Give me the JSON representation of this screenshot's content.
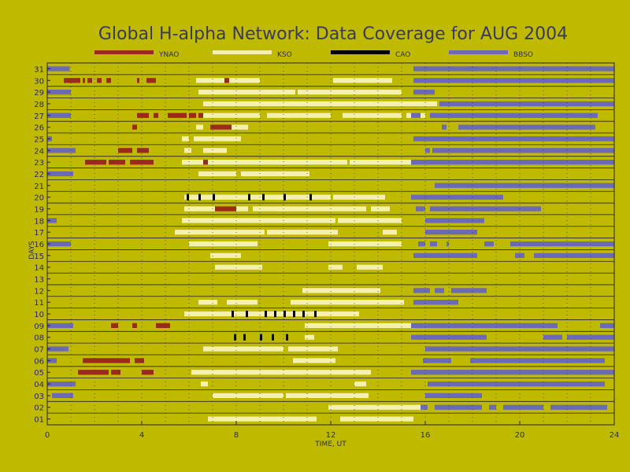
{
  "chart_data": {
    "type": "timeline",
    "title": "Global H-alpha Network: Data Coverage for AUG 2004",
    "xlabel": "TIME, UT",
    "ylabel": "DAYS",
    "xlim": [
      0,
      24
    ],
    "ylim": [
      0.5,
      31.5
    ],
    "xticks": [
      0,
      4,
      8,
      12,
      16,
      20,
      24
    ],
    "yticks": [
      1,
      2,
      3,
      4,
      5,
      6,
      7,
      8,
      9,
      10,
      11,
      12,
      13,
      14,
      15,
      16,
      17,
      18,
      19,
      20,
      21,
      22,
      23,
      24,
      25,
      26,
      27,
      28,
      29,
      30,
      31
    ],
    "ytick_labels": [
      "01",
      "02",
      "03",
      "04",
      "05",
      "06",
      "07",
      "08",
      "09",
      "10",
      "11",
      "12",
      "13",
      "14",
      "15",
      "16",
      "17",
      "18",
      "19",
      "20",
      "21",
      "22",
      "23",
      "24",
      "25",
      "26",
      "27",
      "28",
      "29",
      "30",
      "31"
    ],
    "grid": true,
    "legend_position": "top",
    "colors": {
      "YNAO": "#9c2a1c",
      "KSO": "#f4f0b0",
      "CAO": "#000000",
      "BBSO": "#6a6ab8"
    },
    "series": [
      {
        "name": "YNAO",
        "segments": [
          [
            30,
            0.7,
            1.4
          ],
          [
            30,
            1.5,
            1.6
          ],
          [
            30,
            1.7,
            1.9
          ],
          [
            30,
            2.1,
            2.3
          ],
          [
            30,
            2.5,
            2.7
          ],
          [
            30,
            3.8,
            3.9
          ],
          [
            30,
            4.2,
            4.6
          ],
          [
            30,
            7.5,
            7.7
          ],
          [
            27,
            3.8,
            4.3
          ],
          [
            27,
            4.5,
            4.7
          ],
          [
            27,
            5.1,
            5.9
          ],
          [
            27,
            6.0,
            6.3
          ],
          [
            27,
            6.4,
            6.6
          ],
          [
            26,
            3.6,
            3.8
          ],
          [
            26,
            6.9,
            7.8
          ],
          [
            24,
            3.0,
            3.6
          ],
          [
            24,
            3.8,
            4.3
          ],
          [
            23,
            1.6,
            2.5
          ],
          [
            23,
            2.6,
            3.3
          ],
          [
            23,
            3.5,
            4.5
          ],
          [
            23,
            6.6,
            6.8
          ],
          [
            19,
            7.1,
            8.0
          ],
          [
            9,
            2.7,
            3.0
          ],
          [
            9,
            3.6,
            3.8
          ],
          [
            9,
            4.6,
            5.2
          ],
          [
            6,
            1.5,
            3.5
          ],
          [
            6,
            3.7,
            4.1
          ],
          [
            5,
            1.3,
            2.6
          ],
          [
            5,
            2.7,
            3.1
          ],
          [
            5,
            4.0,
            4.5
          ]
        ]
      },
      {
        "name": "KSO",
        "segments": [
          [
            30,
            6.3,
            9.0
          ],
          [
            30,
            12.1,
            14.6
          ],
          [
            29,
            6.4,
            10.5
          ],
          [
            29,
            10.6,
            15.0
          ],
          [
            28,
            6.6,
            16.5
          ],
          [
            27,
            6.4,
            9.0
          ],
          [
            27,
            9.3,
            12.0
          ],
          [
            27,
            12.5,
            15.0
          ],
          [
            27,
            15.2,
            16.0
          ],
          [
            26,
            6.3,
            6.6
          ],
          [
            26,
            7.0,
            8.5
          ],
          [
            25,
            5.7,
            6.0
          ],
          [
            25,
            6.2,
            8.2
          ],
          [
            24,
            5.8,
            6.1
          ],
          [
            24,
            6.6,
            7.6
          ],
          [
            23,
            5.7,
            12.7
          ],
          [
            23,
            12.8,
            15.4
          ],
          [
            22,
            6.4,
            8.0
          ],
          [
            22,
            8.2,
            11.1
          ],
          [
            20,
            5.8,
            8.5
          ],
          [
            20,
            9.0,
            10.2
          ],
          [
            20,
            5.9,
            12.0
          ],
          [
            20,
            12.1,
            14.3
          ],
          [
            19,
            5.8,
            8.5
          ],
          [
            19,
            8.7,
            13.5
          ],
          [
            19,
            13.7,
            14.5
          ],
          [
            18,
            5.7,
            12.2
          ],
          [
            18,
            12.3,
            15.0
          ],
          [
            17,
            5.4,
            9.2
          ],
          [
            17,
            9.3,
            12.3
          ],
          [
            17,
            14.2,
            14.8
          ],
          [
            16,
            6.0,
            8.9
          ],
          [
            16,
            11.9,
            15.0
          ],
          [
            15,
            6.9,
            8.2
          ],
          [
            14,
            7.1,
            9.1
          ],
          [
            14,
            11.9,
            12.5
          ],
          [
            14,
            13.1,
            14.2
          ],
          [
            12,
            10.8,
            14.1
          ],
          [
            11,
            6.4,
            7.2
          ],
          [
            11,
            7.6,
            8.9
          ],
          [
            11,
            10.3,
            15.1
          ],
          [
            10,
            5.8,
            13.2
          ],
          [
            9,
            10.9,
            15.5
          ],
          [
            8,
            10.9,
            11.3
          ],
          [
            7,
            6.6,
            10.0
          ],
          [
            7,
            10.2,
            12.3
          ],
          [
            6,
            10.4,
            12.2
          ],
          [
            5,
            6.1,
            13.7
          ],
          [
            4,
            6.5,
            6.8
          ],
          [
            4,
            13.0,
            13.5
          ],
          [
            3,
            7.0,
            10.0
          ],
          [
            3,
            10.1,
            13.6
          ],
          [
            2,
            11.9,
            15.8
          ],
          [
            1,
            6.8,
            11.4
          ],
          [
            1,
            12.4,
            15.5
          ]
        ]
      },
      {
        "name": "CAO",
        "segments": [
          [
            20,
            5.9,
            6.0
          ],
          [
            20,
            6.4,
            6.5
          ],
          [
            20,
            7.0,
            7.1
          ],
          [
            20,
            8.5,
            8.6
          ],
          [
            20,
            9.1,
            9.2
          ],
          [
            20,
            10.0,
            10.1
          ],
          [
            20,
            11.1,
            11.2
          ],
          [
            10,
            7.8,
            7.9
          ],
          [
            10,
            8.4,
            8.5
          ],
          [
            10,
            9.2,
            9.3
          ],
          [
            10,
            9.6,
            9.7
          ],
          [
            10,
            10.0,
            10.1
          ],
          [
            10,
            10.4,
            10.5
          ],
          [
            10,
            10.8,
            10.9
          ],
          [
            10,
            11.3,
            11.4
          ],
          [
            8,
            7.9,
            8.0
          ],
          [
            8,
            8.3,
            8.4
          ],
          [
            8,
            9.0,
            9.1
          ],
          [
            8,
            9.5,
            9.6
          ],
          [
            8,
            10.1,
            10.2
          ]
        ]
      },
      {
        "name": "BBSO",
        "segments": [
          [
            31,
            0,
            0.95
          ],
          [
            31,
            15.5,
            24
          ],
          [
            30,
            15.5,
            24
          ],
          [
            29,
            0,
            1.0
          ],
          [
            29,
            15.5,
            16.4
          ],
          [
            28,
            16.6,
            24
          ],
          [
            27,
            15.4,
            15.8
          ],
          [
            27,
            16.2,
            23.3
          ],
          [
            27,
            0,
            1.0
          ],
          [
            26,
            16.7,
            16.9
          ],
          [
            26,
            17.4,
            23.2
          ],
          [
            25,
            0,
            0.2
          ],
          [
            25,
            15.5,
            24
          ],
          [
            24,
            0,
            1.2
          ],
          [
            24,
            16.0,
            16.2
          ],
          [
            24,
            16.3,
            24
          ],
          [
            23,
            15.4,
            24
          ],
          [
            22,
            0,
            1.1
          ],
          [
            21,
            16.4,
            24
          ],
          [
            20,
            15.4,
            19.3
          ],
          [
            19,
            15.6,
            16.0
          ],
          [
            19,
            16.2,
            20.9
          ],
          [
            18,
            0,
            0.4
          ],
          [
            18,
            16.0,
            18.5
          ],
          [
            17,
            16.0,
            18.2
          ],
          [
            16,
            0,
            1.0
          ],
          [
            16,
            15.7,
            16.0
          ],
          [
            16,
            16.2,
            16.5
          ],
          [
            16,
            16.9,
            17.0
          ],
          [
            16,
            18.5,
            18.9
          ],
          [
            16,
            19.6,
            24
          ],
          [
            15,
            15.5,
            18.2
          ],
          [
            15,
            19.8,
            20.2
          ],
          [
            15,
            20.6,
            24
          ],
          [
            12,
            15.5,
            16.2
          ],
          [
            12,
            16.4,
            16.8
          ],
          [
            12,
            17.1,
            18.6
          ],
          [
            11,
            15.5,
            17.4
          ],
          [
            9,
            0,
            1.1
          ],
          [
            9,
            15.4,
            21.6
          ],
          [
            9,
            23.4,
            24
          ],
          [
            8,
            15.4,
            18.6
          ],
          [
            8,
            21.0,
            21.8
          ],
          [
            8,
            22.0,
            24
          ],
          [
            7,
            0,
            0.9
          ],
          [
            7,
            16.0,
            24
          ],
          [
            6,
            15.9,
            17.1
          ],
          [
            6,
            17.9,
            23.6
          ],
          [
            6,
            0,
            0.4
          ],
          [
            5,
            15.4,
            24
          ],
          [
            4,
            0,
            1.2
          ],
          [
            4,
            16.1,
            23.6
          ],
          [
            3,
            0.2,
            1.1
          ],
          [
            3,
            16.0,
            18.4
          ],
          [
            2,
            15.8,
            16.1
          ],
          [
            2,
            16.4,
            18.4
          ],
          [
            2,
            18.7,
            19.0
          ],
          [
            2,
            19.3,
            21.0
          ],
          [
            2,
            21.3,
            23.7
          ]
        ]
      }
    ]
  }
}
